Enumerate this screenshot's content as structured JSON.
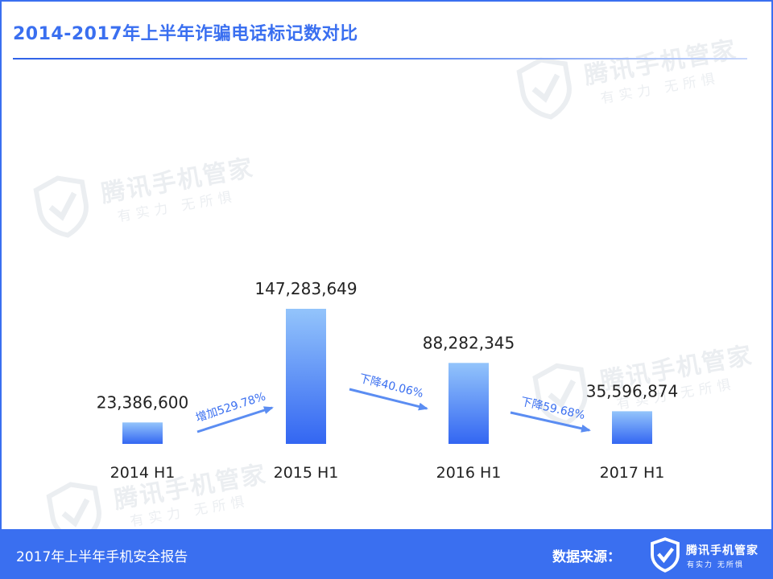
{
  "title": "2014-2017年上半年诈骗电话标记数对比",
  "footer": {
    "report": "2017年上半年手机安全报告",
    "source_label": "数据来源：",
    "brand_name": "腾讯手机管家",
    "brand_slogan": "有实力  无所惧"
  },
  "watermark": {
    "name": "腾讯手机管家",
    "slogan": "有实力  无所惧"
  },
  "colors": {
    "accent": "#3a6ff0",
    "bar_top": "#93c4fb",
    "bar_bottom": "#3366f2",
    "arrow": "#5b8df2",
    "arrow_label": "#3a6ff0"
  },
  "chart_data": {
    "type": "bar",
    "categories": [
      "2014 H1",
      "2015 H1",
      "2016 H1",
      "2017 H1"
    ],
    "values": [
      23386600,
      147283649,
      88282345,
      35596874
    ],
    "value_labels": [
      "23,386,600",
      "147,283,649",
      "88,282,345",
      "35,596,874"
    ],
    "annotations": [
      {
        "from": "2014 H1",
        "to": "2015 H1",
        "text": "增加529.78%"
      },
      {
        "from": "2015 H1",
        "to": "2016 H1",
        "text": "下降40.06%"
      },
      {
        "from": "2016 H1",
        "to": "2017 H1",
        "text": "下降59.68%"
      }
    ],
    "title": "2014-2017年上半年诈骗电话标记数对比",
    "xlabel": "",
    "ylabel": "",
    "grid": false,
    "legend": "none"
  }
}
